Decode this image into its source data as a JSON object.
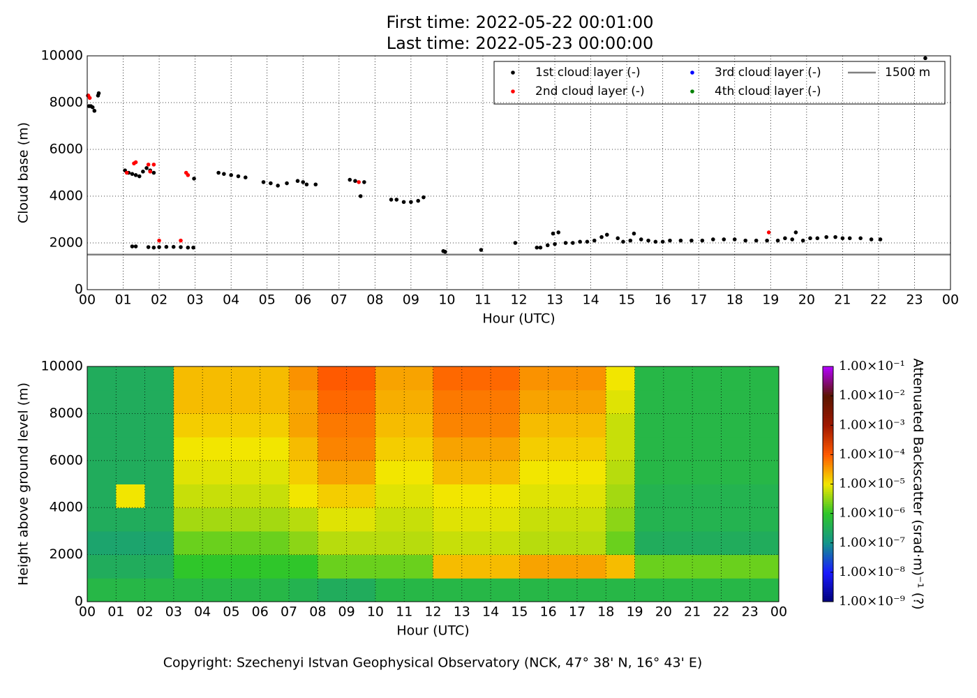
{
  "chart_data": [
    {
      "type": "scatter",
      "title": [
        "First time: 2022-05-22 00:01:00",
        "Last time: 2022-05-23 00:00:00"
      ],
      "x_label": "Hour (UTC)",
      "y_label": "Cloud base (m)",
      "xlim": [
        0,
        24
      ],
      "ylim": [
        0,
        10000
      ],
      "xticks": [
        {
          "value": 0,
          "label": "00"
        },
        {
          "value": 1,
          "label": "01"
        },
        {
          "value": 2,
          "label": "02"
        },
        {
          "value": 3,
          "label": "03"
        },
        {
          "value": 4,
          "label": "04"
        },
        {
          "value": 5,
          "label": "05"
        },
        {
          "value": 6,
          "label": "06"
        },
        {
          "value": 7,
          "label": "07"
        },
        {
          "value": 8,
          "label": "08"
        },
        {
          "value": 9,
          "label": "09"
        },
        {
          "value": 10,
          "label": "10"
        },
        {
          "value": 11,
          "label": "11"
        },
        {
          "value": 12,
          "label": "12"
        },
        {
          "value": 13,
          "label": "13"
        },
        {
          "value": 14,
          "label": "14"
        },
        {
          "value": 15,
          "label": "15"
        },
        {
          "value": 16,
          "label": "16"
        },
        {
          "value": 17,
          "label": "17"
        },
        {
          "value": 18,
          "label": "18"
        },
        {
          "value": 19,
          "label": "19"
        },
        {
          "value": 20,
          "label": "20"
        },
        {
          "value": 21,
          "label": "21"
        },
        {
          "value": 22,
          "label": "22"
        },
        {
          "value": 23,
          "label": "23"
        },
        {
          "value": 24,
          "label": "00"
        }
      ],
      "yticks": [
        0,
        2000,
        4000,
        6000,
        8000,
        10000
      ],
      "grid": true,
      "legend": "upper right",
      "series": [
        {
          "name": "1st cloud layer (-)",
          "color": "#000000",
          "x": [
            0.02,
            0.05,
            0.1,
            0.15,
            0.2,
            0.3,
            0.32,
            1.05,
            1.15,
            1.25,
            1.35,
            1.45,
            1.55,
            1.65,
            1.75,
            1.85,
            1.25,
            1.35,
            1.7,
            1.85,
            2.0,
            2.2,
            2.4,
            2.6,
            2.8,
            2.95,
            2.97,
            3.65,
            3.8,
            4.0,
            4.2,
            4.4,
            4.9,
            5.1,
            5.3,
            5.55,
            5.85,
            6.0,
            6.1,
            6.35,
            7.3,
            7.45,
            7.6,
            7.7,
            8.45,
            8.6,
            8.8,
            9.0,
            9.2,
            9.35,
            9.9,
            9.95,
            10.95,
            11.9,
            12.5,
            12.6,
            12.8,
            13.0,
            12.95,
            13.1,
            13.3,
            13.5,
            13.7,
            13.9,
            14.1,
            14.3,
            14.45,
            14.75,
            14.9,
            15.1,
            15.2,
            15.4,
            15.6,
            15.8,
            16.0,
            16.2,
            16.5,
            16.8,
            17.1,
            17.4,
            17.7,
            18.0,
            18.3,
            18.6,
            18.9,
            19.2,
            19.4,
            19.6,
            19.7,
            19.9,
            20.1,
            20.3,
            20.55,
            20.8,
            21.0,
            21.2,
            21.5,
            21.8,
            22.05,
            23.3
          ],
          "values": [
            8300,
            7850,
            7850,
            7800,
            7650,
            8300,
            8400,
            5100,
            5000,
            4950,
            4900,
            4850,
            5050,
            5200,
            5100,
            5000,
            1850,
            1850,
            1820,
            1800,
            1820,
            1830,
            1830,
            1820,
            1800,
            1800,
            4750,
            5000,
            4950,
            4900,
            4850,
            4800,
            4600,
            4550,
            4450,
            4550,
            4650,
            4600,
            4500,
            4500,
            4700,
            4650,
            4000,
            4600,
            3850,
            3850,
            3750,
            3750,
            3800,
            3950,
            1650,
            1620,
            1700,
            2000,
            1800,
            1800,
            1900,
            1950,
            2400,
            2450,
            2000,
            2000,
            2050,
            2050,
            2100,
            2250,
            2350,
            2200,
            2050,
            2100,
            2400,
            2150,
            2100,
            2050,
            2050,
            2100,
            2100,
            2100,
            2100,
            2150,
            2150,
            2150,
            2100,
            2100,
            2100,
            2100,
            2200,
            2150,
            2450,
            2100,
            2200,
            2200,
            2250,
            2250,
            2200,
            2200,
            2200,
            2150,
            2150,
            9900
          ]
        },
        {
          "name": "2nd cloud layer (-)",
          "color": "#ff0000",
          "x": [
            0.03,
            0.07,
            1.1,
            1.3,
            1.35,
            1.7,
            1.85,
            1.75,
            2.0,
            2.6,
            2.75,
            2.8,
            7.55,
            18.95
          ],
          "values": [
            8300,
            8200,
            5000,
            5400,
            5450,
            5350,
            5350,
            5050,
            2100,
            2100,
            5000,
            4900,
            4600,
            2450
          ]
        },
        {
          "name": "3rd cloud layer (-)",
          "color": "#0000ff",
          "x": [],
          "values": []
        },
        {
          "name": "4th cloud layer (-)",
          "color": "#008000",
          "x": [],
          "values": []
        }
      ],
      "hlines": [
        {
          "name": "1500 m",
          "value": 1500,
          "color": "#808080"
        }
      ]
    },
    {
      "type": "heatmap",
      "x_label": "Hour (UTC)",
      "y_label": "Height above ground level (m)",
      "colorbar_label": "Attenuated Backscatter (srad·m)⁻¹ (?)",
      "xlim": [
        0,
        24
      ],
      "ylim": [
        0,
        10000
      ],
      "xticks": [
        {
          "value": 0,
          "label": "00"
        },
        {
          "value": 1,
          "label": "01"
        },
        {
          "value": 2,
          "label": "02"
        },
        {
          "value": 3,
          "label": "03"
        },
        {
          "value": 4,
          "label": "04"
        },
        {
          "value": 5,
          "label": "05"
        },
        {
          "value": 6,
          "label": "06"
        },
        {
          "value": 7,
          "label": "07"
        },
        {
          "value": 8,
          "label": "08"
        },
        {
          "value": 9,
          "label": "09"
        },
        {
          "value": 10,
          "label": "10"
        },
        {
          "value": 11,
          "label": "11"
        },
        {
          "value": 12,
          "label": "12"
        },
        {
          "value": 13,
          "label": "13"
        },
        {
          "value": 14,
          "label": "14"
        },
        {
          "value": 15,
          "label": "15"
        },
        {
          "value": 16,
          "label": "16"
        },
        {
          "value": 17,
          "label": "17"
        },
        {
          "value": 18,
          "label": "18"
        },
        {
          "value": 19,
          "label": "19"
        },
        {
          "value": 20,
          "label": "20"
        },
        {
          "value": 21,
          "label": "21"
        },
        {
          "value": 22,
          "label": "22"
        },
        {
          "value": 23,
          "label": "23"
        },
        {
          "value": 24,
          "label": "00"
        }
      ],
      "yticks": [
        0,
        2000,
        4000,
        6000,
        8000,
        10000
      ],
      "grid": true,
      "log_color": true,
      "clim": [
        1e-09,
        0.1
      ],
      "cticks": [
        {
          "value": 1e-09,
          "label": "1.00×10⁻⁹"
        },
        {
          "value": 1e-08,
          "label": "1.00×10⁻⁸"
        },
        {
          "value": 1e-07,
          "label": "1.00×10⁻⁷"
        },
        {
          "value": 1e-06,
          "label": "1.00×10⁻⁶"
        },
        {
          "value": 1e-05,
          "label": "1.00×10⁻⁵"
        },
        {
          "value": 0.0001,
          "label": "1.00×10⁻⁴"
        },
        {
          "value": 0.001,
          "label": "1.00×10⁻³"
        },
        {
          "value": 0.01,
          "label": "1.00×10⁻²"
        },
        {
          "value": 0.1,
          "label": "1.00×10⁻¹"
        }
      ],
      "colormap": [
        "#00007a",
        "#1a1aff",
        "#14958a",
        "#2fc62a",
        "#f2e600",
        "#ff5a00",
        "#a01800",
        "#5a1500",
        "#b400ff"
      ],
      "x": [
        0,
        1,
        2,
        3,
        4,
        5,
        6,
        7,
        8,
        9,
        10,
        11,
        12,
        13,
        14,
        15,
        16,
        17,
        18,
        19,
        20,
        21,
        22,
        23
      ],
      "y": [
        0,
        1000,
        2000,
        3000,
        4000,
        5000,
        6000,
        7000,
        8000,
        9000
      ],
      "z": [
        [
          5e-07,
          5e-07,
          5e-07,
          5e-07,
          5e-07,
          5e-07,
          5e-07,
          4e-07,
          3e-07,
          3e-07,
          5e-07,
          5e-07,
          5e-07,
          5e-07,
          5e-07,
          5e-07,
          5e-07,
          5e-07,
          5e-07,
          5e-07,
          5e-07,
          5e-07,
          5e-07,
          5e-07
        ],
        [
          3e-07,
          3e-07,
          3e-07,
          1e-06,
          1e-06,
          1e-06,
          1e-06,
          1e-06,
          2e-06,
          2e-06,
          2e-06,
          2e-06,
          2e-05,
          2e-05,
          2e-05,
          3e-05,
          3e-05,
          3e-05,
          2e-05,
          2e-06,
          2e-06,
          2e-06,
          2e-06,
          2e-06
        ],
        [
          2e-07,
          2e-07,
          2e-07,
          2e-06,
          2e-06,
          2e-06,
          2e-06,
          3e-06,
          5e-06,
          5e-06,
          5e-06,
          5e-06,
          6e-06,
          6e-06,
          6e-06,
          5e-06,
          5e-06,
          5e-06,
          2e-06,
          3e-07,
          3e-07,
          3e-07,
          3e-07,
          3e-07
        ],
        [
          3e-07,
          3e-07,
          3e-07,
          4e-06,
          4e-06,
          4e-06,
          4e-06,
          5e-06,
          8e-06,
          8e-06,
          6e-06,
          6e-06,
          8e-06,
          8e-06,
          8e-06,
          6e-06,
          6e-06,
          6e-06,
          3e-06,
          4e-07,
          4e-07,
          4e-07,
          4e-07,
          4e-07
        ],
        [
          3e-07,
          1e-05,
          3e-07,
          6e-06,
          6e-06,
          6e-06,
          6e-06,
          1e-05,
          1.5e-05,
          1.5e-05,
          8e-06,
          8e-06,
          1e-05,
          1e-05,
          1e-05,
          8e-06,
          8e-06,
          8e-06,
          4e-06,
          4e-07,
          4e-07,
          4e-07,
          4e-07,
          4e-07
        ],
        [
          3e-07,
          3e-07,
          3e-07,
          8e-06,
          8e-06,
          8e-06,
          8e-06,
          1.5e-05,
          3e-05,
          3e-05,
          1e-05,
          1e-05,
          2e-05,
          2e-05,
          2e-05,
          1e-05,
          1e-05,
          1e-05,
          5e-06,
          5e-07,
          5e-07,
          5e-07,
          5e-07,
          5e-07
        ],
        [
          3e-07,
          3e-07,
          3e-07,
          1e-05,
          1e-05,
          1e-05,
          1e-05,
          2e-05,
          5e-05,
          5e-05,
          1.5e-05,
          1.5e-05,
          3e-05,
          3e-05,
          3e-05,
          1.5e-05,
          1.5e-05,
          1.5e-05,
          6e-06,
          5e-07,
          5e-07,
          5e-07,
          5e-07,
          5e-07
        ],
        [
          3e-07,
          3e-07,
          3e-07,
          1.5e-05,
          1.5e-05,
          1.5e-05,
          1.5e-05,
          3e-05,
          6e-05,
          6e-05,
          2e-05,
          2e-05,
          5e-05,
          5e-05,
          5e-05,
          2e-05,
          2e-05,
          2e-05,
          6e-06,
          5e-07,
          5e-07,
          5e-07,
          5e-07,
          5e-07
        ],
        [
          3e-07,
          3e-07,
          3e-07,
          2e-05,
          2e-05,
          2e-05,
          2e-05,
          3e-05,
          8e-05,
          8e-05,
          2.5e-05,
          2.5e-05,
          6e-05,
          6e-05,
          6e-05,
          3e-05,
          3e-05,
          3e-05,
          8e-06,
          5e-07,
          5e-07,
          5e-07,
          5e-07,
          5e-07
        ],
        [
          3e-07,
          3e-07,
          3e-07,
          2e-05,
          2e-05,
          2e-05,
          2e-05,
          4e-05,
          0.0001,
          0.0001,
          3e-05,
          3e-05,
          8e-05,
          8e-05,
          8e-05,
          4e-05,
          4e-05,
          4e-05,
          1e-05,
          5e-07,
          5e-07,
          5e-07,
          5e-07,
          5e-07
        ]
      ]
    }
  ],
  "footer": "Copyright: Szechenyi Istvan Geophysical Observatory (NCK, 47° 38' N, 16° 43' E)"
}
